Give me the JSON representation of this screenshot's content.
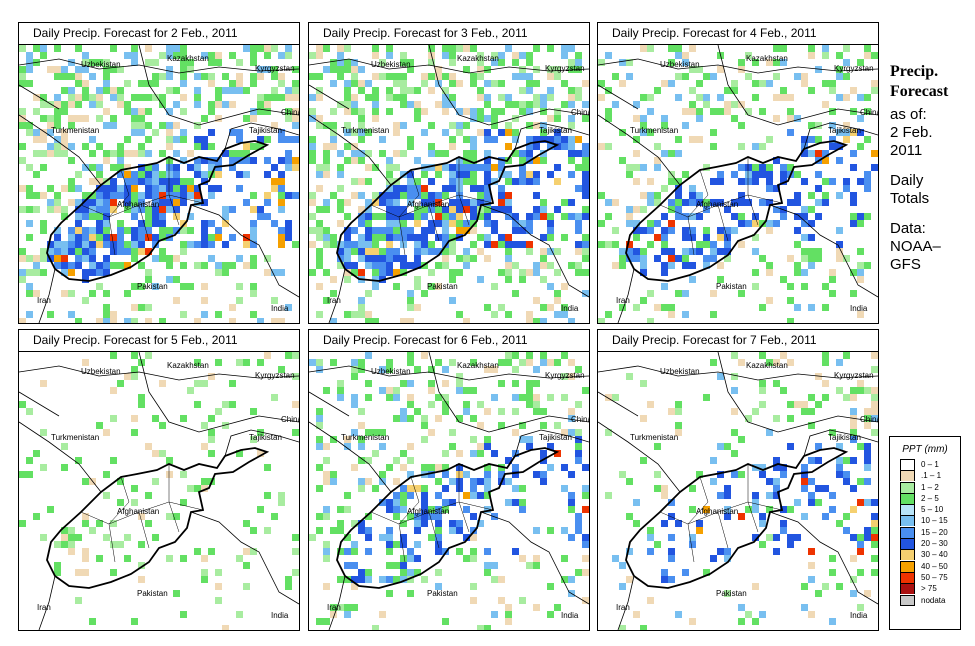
{
  "panels": [
    {
      "title": "Daily Precip. Forecast for  2 Feb., 2011",
      "level": "heavy"
    },
    {
      "title": "Daily Precip. Forecast for  3 Feb., 2011",
      "level": "heavy"
    },
    {
      "title": "Daily Precip. Forecast for  4 Feb., 2011",
      "level": "moderate"
    },
    {
      "title": "Daily Precip. Forecast for  5 Feb., 2011",
      "level": "light"
    },
    {
      "title": "Daily Precip. Forecast for  6 Feb., 2011",
      "level": "moderate"
    },
    {
      "title": "Daily Precip. Forecast for  7 Feb., 2011",
      "level": "east-heavy"
    }
  ],
  "map_labels": {
    "kazakhstan": "Kazakhstan",
    "uzbekistan": "Uzbekistan",
    "kyrgyzstan": "Kyrgyzstan",
    "china": "China",
    "turkmenistan": "Turkmenistan",
    "tajikistan": "Tajikistan",
    "afghanistan": "Afghanistan",
    "pakistan": "Pakistan",
    "iran": "Iran",
    "india": "India"
  },
  "side": {
    "title_line1": "Precip.",
    "title_line2": "Forecast",
    "asof": "as of:",
    "date_line1": "2 Feb.",
    "date_line2": "2011",
    "totals_line1": "Daily",
    "totals_line2": "Totals",
    "data_line1": "Data:",
    "data_line2": "NOAA–",
    "data_line3": "GFS"
  },
  "legend": {
    "title": "PPT (mm)",
    "items": [
      {
        "label": "0 – 1",
        "color": "#ffffff"
      },
      {
        "label": ".1 – 1",
        "color": "#f0d9b5"
      },
      {
        "label": "1 – 2",
        "color": "#a8eca0"
      },
      {
        "label": "2 – 5",
        "color": "#63e063"
      },
      {
        "label": "5 – 10",
        "color": "#b8e4f8"
      },
      {
        "label": "10 – 15",
        "color": "#78bff0"
      },
      {
        "label": "15 – 20",
        "color": "#4a8ff0"
      },
      {
        "label": "20 – 30",
        "color": "#2255e0"
      },
      {
        "label": "30 – 40",
        "color": "#f5d070"
      },
      {
        "label": "40 – 50",
        "color": "#f5a000"
      },
      {
        "label": "50 – 75",
        "color": "#ee3300"
      },
      {
        "label": "> 75",
        "color": "#aa1010"
      },
      {
        "label": "nodata",
        "color": "#c8c8c8"
      }
    ]
  }
}
